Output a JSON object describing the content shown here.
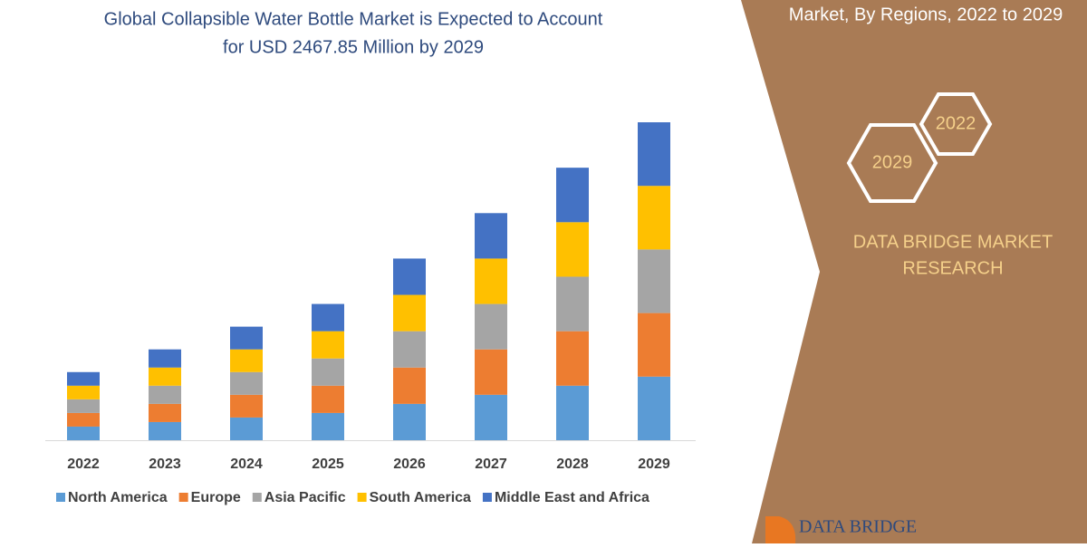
{
  "chart_data": {
    "type": "stacked-bar",
    "title_lines": [
      "Global Collapsible Water Bottle Market is Expected to Account",
      "for USD 2467.85 Million by 2029"
    ],
    "categories": [
      "2022",
      "2023",
      "2024",
      "2025",
      "2026",
      "2027",
      "2028",
      "2029"
    ],
    "series": [
      {
        "name": "North America",
        "color": "#5b9bd5",
        "values": [
          15,
          20,
          25,
          30,
          40,
          50,
          60,
          70
        ]
      },
      {
        "name": "Europe",
        "color": "#ed7d31",
        "values": [
          15,
          20,
          25,
          30,
          40,
          50,
          60,
          70
        ]
      },
      {
        "name": "Asia Pacific",
        "color": "#a5a5a5",
        "values": [
          15,
          20,
          25,
          30,
          40,
          50,
          60,
          70
        ]
      },
      {
        "name": "South America",
        "color": "#ffc000",
        "values": [
          15,
          20,
          25,
          30,
          40,
          50,
          60,
          70
        ]
      },
      {
        "name": "Middle East and Africa",
        "color": "#4472c4",
        "values": [
          15,
          20,
          25,
          30,
          40,
          50,
          60,
          70
        ]
      }
    ]
  },
  "side_panel": {
    "heading": "Market, By Regions, 2022 to 2029",
    "badges": [
      "2022",
      "2029"
    ],
    "brand_lines": [
      "DATA BRIDGE MARKET",
      "RESEARCH"
    ],
    "logo": "DATA BRIDGE"
  }
}
